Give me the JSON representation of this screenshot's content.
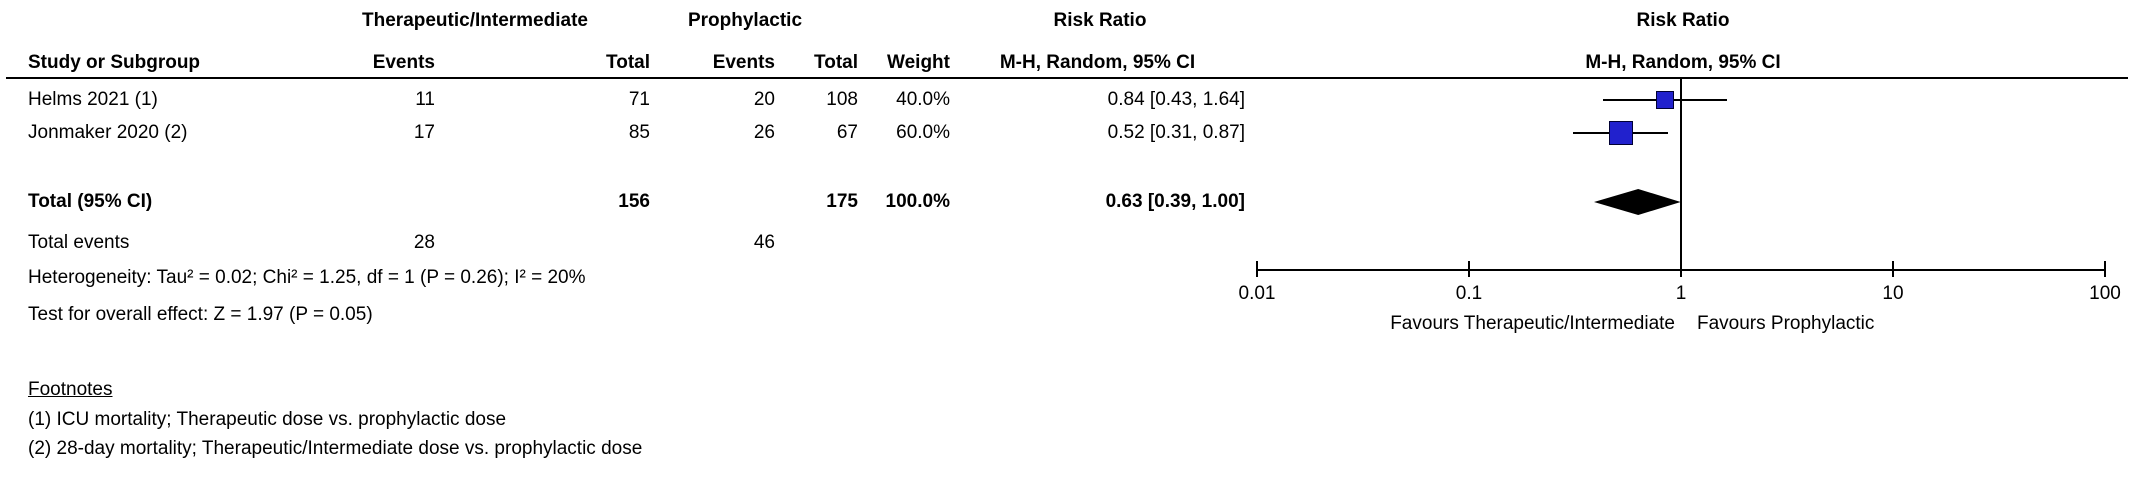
{
  "table": {
    "group1_header": "Therapeutic/Intermediate",
    "group2_header": "Prophylactic",
    "effect_header": "Risk Ratio",
    "method_header": "M-H, Random, 95% CI",
    "columns": {
      "study": "Study or Subgroup",
      "events": "Events",
      "total": "Total",
      "weight": "Weight"
    },
    "rows": [
      {
        "study": "Helms 2021 (1)",
        "events1": "11",
        "total1": "71",
        "events2": "20",
        "total2": "108",
        "weight": "40.0%",
        "ci": "0.84 [0.43, 1.64]"
      },
      {
        "study": "Jonmaker 2020 (2)",
        "events1": "17",
        "total1": "85",
        "events2": "26",
        "total2": "67",
        "weight": "60.0%",
        "ci": "0.52 [0.31, 0.87]"
      }
    ],
    "total_row": {
      "label": "Total (95% CI)",
      "total1": "156",
      "total2": "175",
      "weight": "100.0%",
      "ci": "0.63 [0.39, 1.00]"
    },
    "total_events": {
      "label": "Total events",
      "events1": "28",
      "events2": "46"
    },
    "heterogeneity": "Heterogeneity: Tau² = 0.02; Chi² = 1.25, df = 1 (P = 0.26); I² = 20%",
    "overall_effect": "Test for overall effect: Z = 1.97 (P = 0.05)"
  },
  "footnotes": {
    "title": "Footnotes",
    "items": [
      "(1) ICU mortality; Therapeutic dose vs. prophylactic dose",
      "(2) 28-day mortality; Therapeutic/Intermediate dose vs. prophylactic dose"
    ]
  },
  "colors": {
    "marker_blue": "#2121cd",
    "diamond_black": "#000000"
  },
  "chart_data": {
    "type": "forest",
    "effect_measure": "Risk Ratio",
    "model": "M-H, Random, 95% CI",
    "x_scale": "log",
    "x_ticks": [
      0.01,
      0.1,
      1,
      10,
      100
    ],
    "xlim": [
      0.01,
      100
    ],
    "null_line": 1,
    "studies": [
      {
        "name": "Helms 2021 (1)",
        "events_exp": 11,
        "total_exp": 71,
        "events_ctrl": 20,
        "total_ctrl": 108,
        "weight_pct": 40.0,
        "rr": 0.84,
        "ci_low": 0.43,
        "ci_high": 1.64
      },
      {
        "name": "Jonmaker 2020 (2)",
        "events_exp": 17,
        "total_exp": 85,
        "events_ctrl": 26,
        "total_ctrl": 67,
        "weight_pct": 60.0,
        "rr": 0.52,
        "ci_low": 0.31,
        "ci_high": 0.87
      }
    ],
    "total": {
      "label": "Total (95% CI)",
      "total_exp": 156,
      "total_ctrl": 175,
      "events_exp": 28,
      "events_ctrl": 46,
      "weight_pct": 100.0,
      "rr": 0.63,
      "ci_low": 0.39,
      "ci_high": 1.0
    },
    "heterogeneity": {
      "tau2": 0.02,
      "chi2": 1.25,
      "df": 1,
      "p": 0.26,
      "i2_pct": 20
    },
    "overall_effect": {
      "z": 1.97,
      "p": 0.05
    },
    "favours_left": "Favours Therapeutic/Intermediate",
    "favours_right": "Favours Prophylactic"
  }
}
